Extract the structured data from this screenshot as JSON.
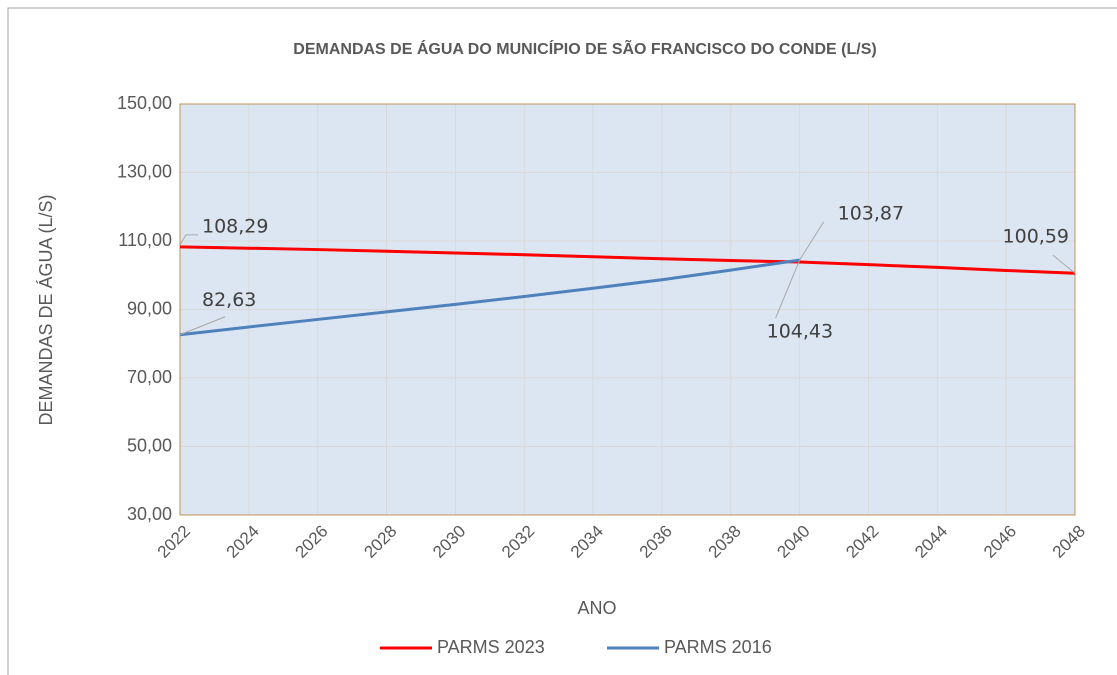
{
  "chart_data": {
    "type": "line",
    "title": "DEMANDAS DE ÁGUA DO MUNICÍPIO DE SÃO FRANCISCO DO CONDE (L/S)",
    "xlabel": "ANO",
    "ylabel": "DEMANDAS DE ÁGUA (L/S)",
    "x": [
      2022,
      2024,
      2026,
      2028,
      2030,
      2032,
      2034,
      2036,
      2038,
      2040,
      2042,
      2044,
      2046,
      2048
    ],
    "xlim": [
      2022,
      2048
    ],
    "xticks": [
      2022,
      2024,
      2026,
      2028,
      2030,
      2032,
      2034,
      2036,
      2038,
      2040,
      2042,
      2044,
      2046,
      2048
    ],
    "ylim": [
      30,
      150
    ],
    "yticks": [
      {
        "value": 30,
        "label": "30,00"
      },
      {
        "value": 50,
        "label": "50,00"
      },
      {
        "value": 70,
        "label": "70,00"
      },
      {
        "value": 90,
        "label": "90,00"
      },
      {
        "value": 110,
        "label": "110,00"
      },
      {
        "value": 130,
        "label": "130,00"
      },
      {
        "value": 150,
        "label": "150,00"
      }
    ],
    "grid": true,
    "legend": "bottom",
    "series": [
      {
        "name": "PARMS 2023",
        "color": "#ff0000",
        "values": [
          108.29,
          107.9,
          107.5,
          107.0,
          106.5,
          106.0,
          105.4,
          104.8,
          104.3,
          103.87,
          103.1,
          102.3,
          101.4,
          100.59
        ],
        "value_labels": [
          "108,29",
          null,
          null,
          null,
          null,
          null,
          null,
          null,
          null,
          "103,87",
          null,
          null,
          null,
          "100,59"
        ]
      },
      {
        "name": "PARMS 2016",
        "color": "#4f81bd",
        "values": [
          82.63,
          84.9,
          87.1,
          89.3,
          91.5,
          93.8,
          96.2,
          98.7,
          101.5,
          104.43,
          null,
          null,
          null,
          null
        ],
        "value_labels": [
          "82,63",
          null,
          null,
          null,
          null,
          null,
          null,
          null,
          null,
          "104,43",
          null,
          null,
          null,
          null
        ]
      }
    ]
  }
}
